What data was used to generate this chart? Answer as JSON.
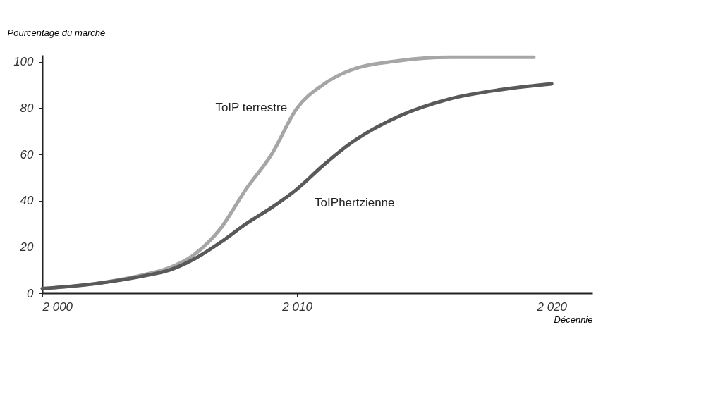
{
  "chart_data": {
    "type": "line",
    "xlabel": "Décennie",
    "ylabel": "Pourcentage du marché",
    "x": [
      2000,
      2002,
      2004,
      2005,
      2006,
      2007,
      2008,
      2009,
      2010,
      2011,
      2012,
      2014,
      2016,
      2018,
      2019.3
    ],
    "series": [
      {
        "name": "ToIP terrestre",
        "color": "#a6a6a6",
        "values": [
          2,
          4,
          8,
          11,
          17,
          28,
          45,
          60,
          80,
          90,
          96,
          100.5,
          102,
          102,
          102
        ]
      },
      {
        "name": "ToIPhertzienne",
        "color": "#595959",
        "x": [
          2000,
          2002,
          2004,
          2005,
          2006,
          2007,
          2008,
          2009,
          2010,
          2011,
          2012,
          2014,
          2016,
          2018,
          2020
        ],
        "values": [
          2,
          4,
          7.5,
          10,
          15,
          22,
          30,
          37,
          45,
          55,
          64,
          76.5,
          84,
          88,
          90.5
        ]
      }
    ],
    "xlim": [
      2000,
      2021.6
    ],
    "ylim": [
      0,
      103
    ],
    "xticks": [
      {
        "value": 2000,
        "label": "2 000"
      },
      {
        "value": 2010,
        "label": "2 010"
      },
      {
        "value": 2020,
        "label": "2 020"
      }
    ],
    "yticks": [
      0,
      20,
      40,
      60,
      80,
      100
    ],
    "grid": false,
    "legend": false,
    "marker": "none",
    "line_style": "solid"
  }
}
